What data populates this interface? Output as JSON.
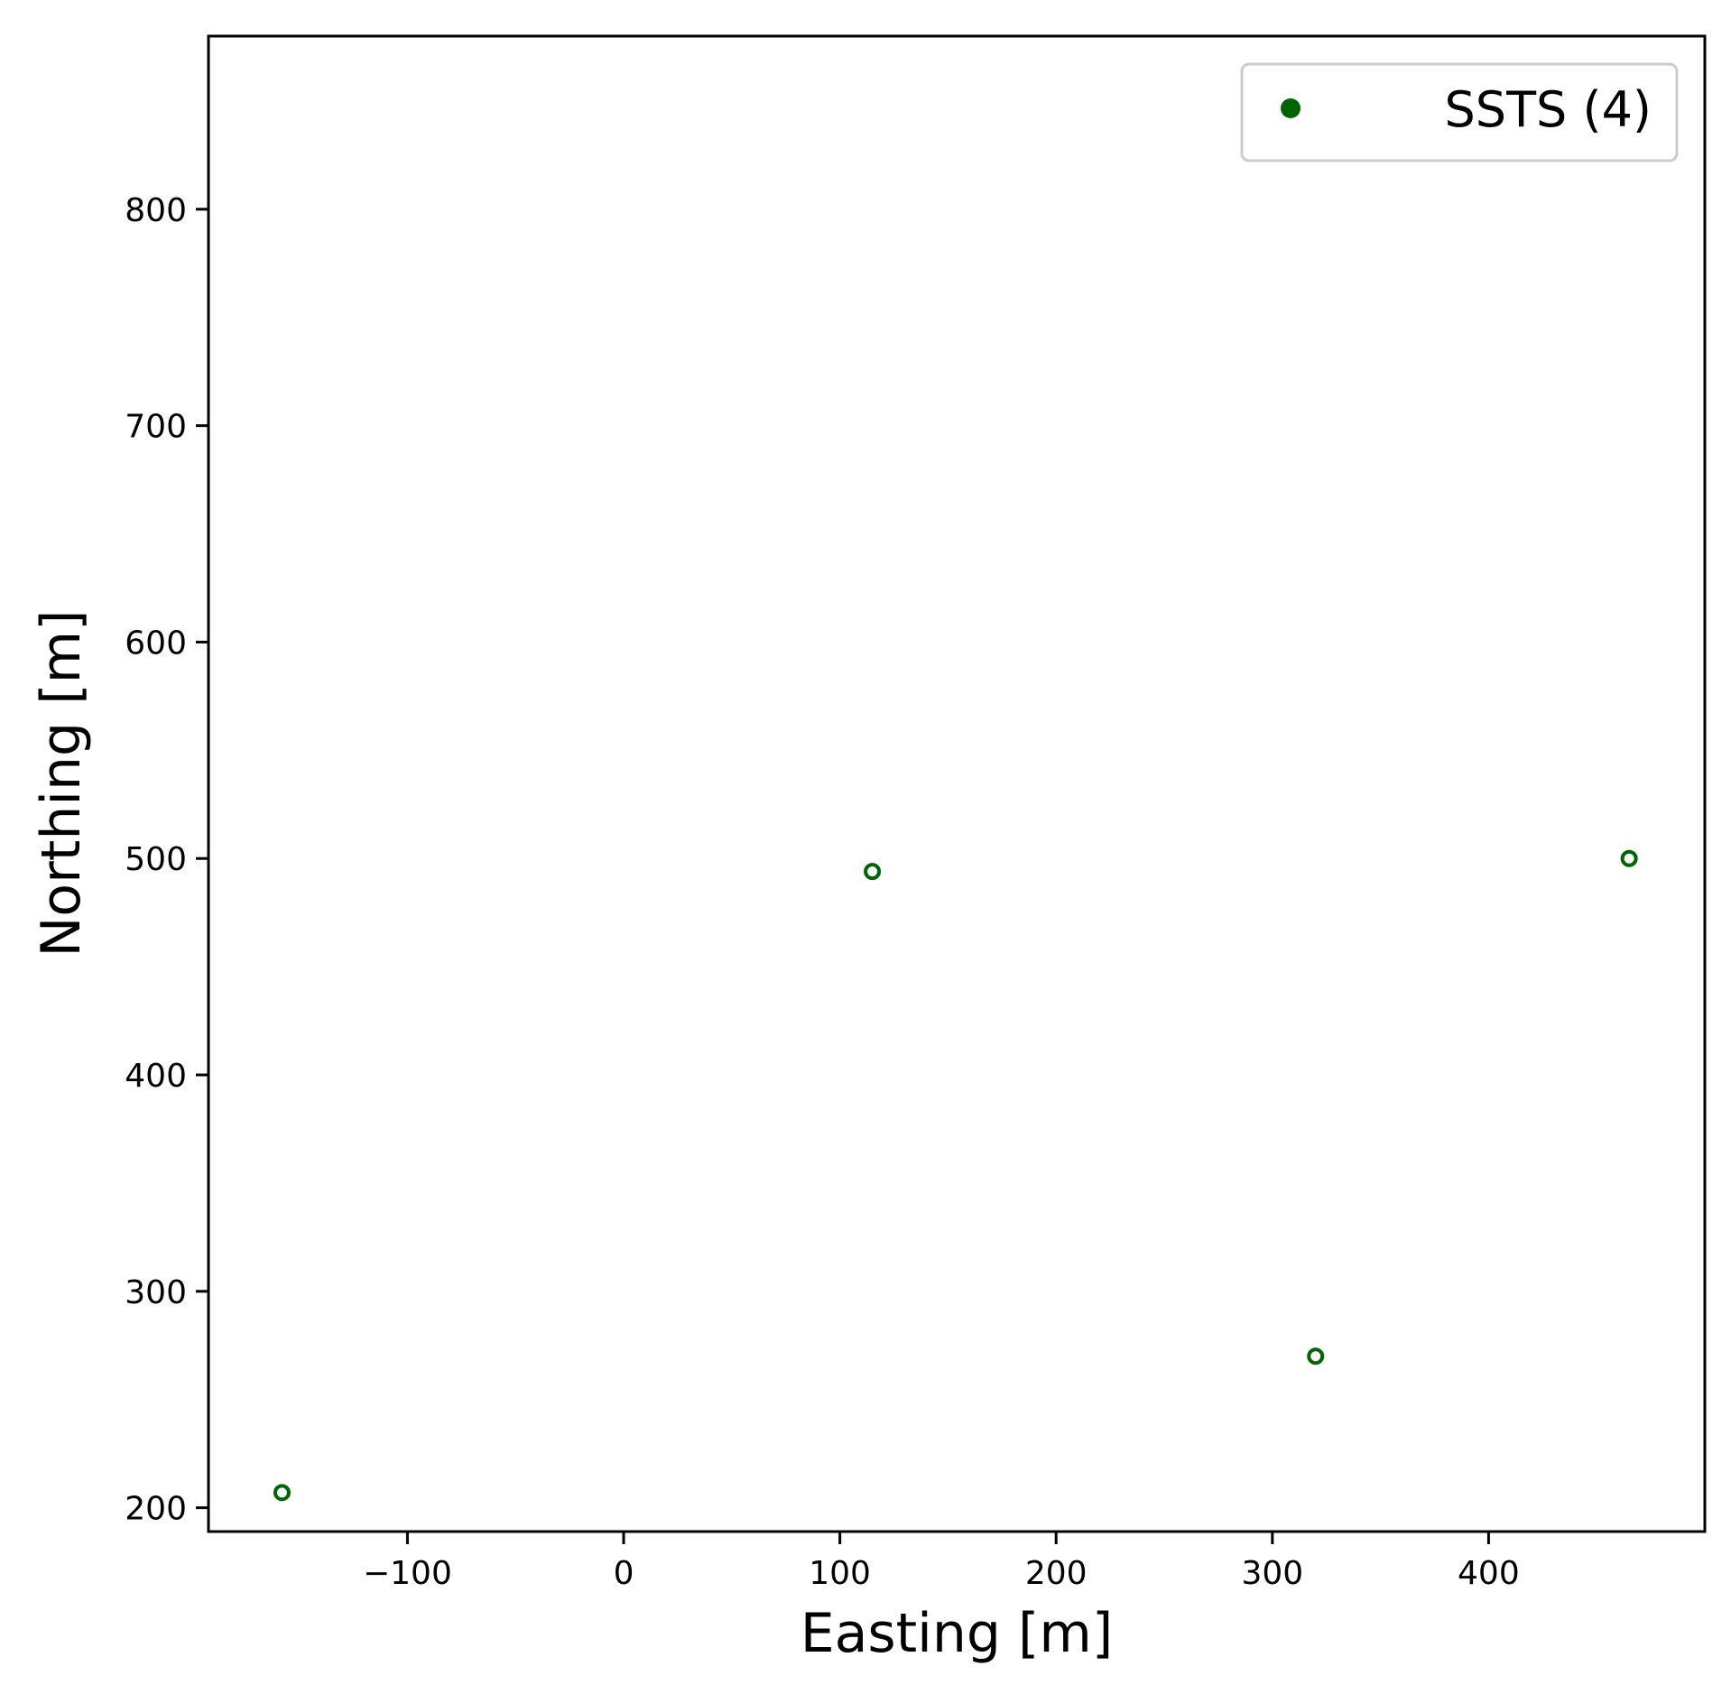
{
  "colors": {
    "series": "#006400",
    "axes": "#000000",
    "legend_border": "#cccccc",
    "background": "#ffffff"
  },
  "chart_data": {
    "type": "scatter",
    "title": "",
    "xlabel": "Easting [m]",
    "ylabel": "Northing [m]",
    "xlim": [
      -192,
      500
    ],
    "ylim": [
      189,
      880
    ],
    "xticks": [
      -100,
      0,
      100,
      200,
      300,
      400
    ],
    "xtick_labels": [
      "−100",
      "0",
      "100",
      "200",
      "300",
      "400"
    ],
    "yticks": [
      200,
      300,
      400,
      500,
      600,
      700,
      800
    ],
    "ytick_labels": [
      "200",
      "300",
      "400",
      "500",
      "600",
      "700",
      "800"
    ],
    "grid": false,
    "legend_position": "top-right",
    "series": [
      {
        "name": "SSTS (4)",
        "marker": "hollow-circle",
        "color": "#006400",
        "x": [
          -158,
          115,
          320,
          465
        ],
        "y": [
          207,
          494,
          270,
          500
        ]
      }
    ]
  }
}
